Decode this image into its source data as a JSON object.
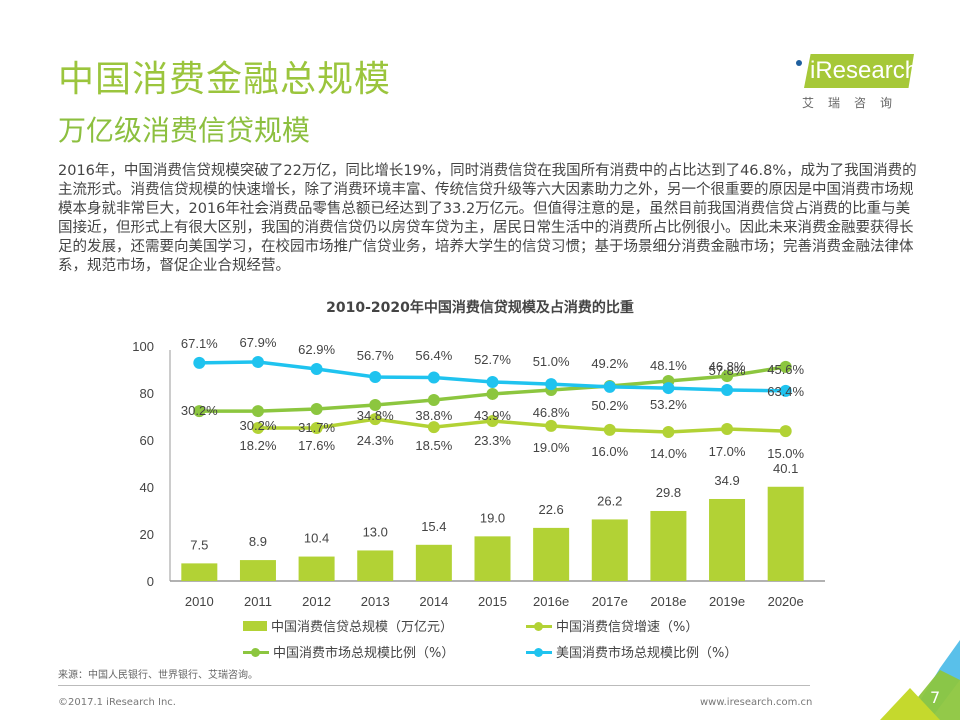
{
  "header": {
    "title": "中国消费金融总规模",
    "subtitle": "万亿级消费信贷规模"
  },
  "logo": {
    "brand": "iResearch",
    "brand_cn": "艾瑞咨询",
    "colors": {
      "box": "#a6c838",
      "dot": "#1f5f9e"
    }
  },
  "body_text": "2016年，中国消费信贷规模突破了22万亿，同比增长19%，同时消费信贷在我国所有消费中的占比达到了46.8%，成为了我国消费的主流形式。消费信贷规模的快速增长，除了消费环境丰富、传统信贷升级等六大因素助力之外，另一个很重要的原因是中国消费市场规模本身就非常巨大，2016年社会消费品零售总额已经达到了33.2万亿元。但值得注意的是，虽然目前我国消费信贷占消费的比重与美国接近，但形式上有很大区别，我国的消费信贷仍以房贷车贷为主，居民日常生活中的消费所占比例很小。因此未来消费金融要获得长足的发展，还需要向美国学习，在校园市场推广信贷业务，培养大学生的信贷习惯；基于场景细分消费金融市场；完善消费金融法律体系，规范市场，督促企业合规经营。",
  "chart_data": {
    "type": "bar",
    "title": "2010-2020年中国消费信贷规模及占消费的比重",
    "xlabel": "",
    "ylabel": "",
    "ylim": [
      0,
      100
    ],
    "yticks": [
      0,
      20,
      40,
      60,
      80,
      100
    ],
    "grid": false,
    "legend_position": "bottom",
    "categories": [
      "2010",
      "2011",
      "2012",
      "2013",
      "2014",
      "2015",
      "2016e",
      "2017e",
      "2018e",
      "2019e",
      "2020e"
    ],
    "series": [
      {
        "name": "中国消费信贷总规模（万亿元）",
        "type": "bar",
        "color": "#b2d235",
        "values": [
          7.5,
          8.9,
          10.4,
          13.0,
          15.4,
          19.0,
          22.6,
          26.2,
          29.8,
          34.9,
          40.1
        ],
        "labels": [
          "7.5",
          "8.9",
          "10.4",
          "13.0",
          "15.4",
          "19.0",
          "22.6",
          "26.2",
          "29.8",
          "34.9",
          "40.1"
        ]
      },
      {
        "name": "中国消费信贷增速（%）",
        "type": "line",
        "color": "#b2d235",
        "values": [
          null,
          18.2,
          17.6,
          24.3,
          18.5,
          23.3,
          19.0,
          16.0,
          14.0,
          17.0,
          15.0
        ],
        "plotted_on_axis": [
          null,
          65.1,
          65.1,
          68.9,
          65.5,
          68.1,
          66.0,
          64.3,
          63.4,
          64.7,
          63.8
        ],
        "labels": [
          "",
          "18.2%",
          "17.6%",
          "24.3%",
          "18.5%",
          "23.3%",
          "19.0%",
          "16.0%",
          "14.0%",
          "17.0%",
          "15.0%"
        ]
      },
      {
        "name": "中国消费市场总规模比例（%）",
        "type": "line",
        "color": "#8cc63f",
        "values": [
          30.2,
          30.2,
          31.7,
          34.8,
          38.8,
          43.9,
          46.8,
          50.2,
          53.2,
          57.8,
          63.4
        ],
        "plotted_on_axis": [
          72.3,
          72.3,
          73.2,
          74.9,
          77.0,
          79.6,
          81.3,
          83.0,
          85.1,
          87.2,
          91.1
        ],
        "labels": [
          "30.2%",
          "30.2%",
          "31.7%",
          "34.8%",
          "38.8%",
          "43.9%",
          "46.8%",
          "50.2%",
          "53.2%",
          "57.8%",
          "63.4%"
        ]
      },
      {
        "name": "美国消费市场总规模比例（%）",
        "type": "line",
        "color": "#1fc3ef",
        "values": [
          67.1,
          67.9,
          62.9,
          56.7,
          56.4,
          52.7,
          51.0,
          49.2,
          48.1,
          46.8,
          45.6
        ],
        "plotted_on_axis": [
          92.8,
          93.2,
          90.2,
          86.8,
          86.6,
          84.7,
          83.8,
          82.6,
          82.1,
          81.3,
          80.9
        ],
        "labels": [
          "67.1%",
          "67.9%",
          "62.9%",
          "56.7%",
          "56.4%",
          "52.7%",
          "51.0%",
          "49.2%",
          "48.1%",
          "46.8%",
          "45.6%"
        ]
      }
    ]
  },
  "legend": [
    {
      "label": "中国消费信贷总规模（万亿元）",
      "kind": "bar",
      "color": "#b2d235"
    },
    {
      "label": "中国消费信贷增速（%）",
      "kind": "line",
      "color": "#b2d235"
    },
    {
      "label": "中国消费市场总规模比例（%）",
      "kind": "line",
      "color": "#8cc63f"
    },
    {
      "label": "美国消费市场总规模比例（%）",
      "kind": "line",
      "color": "#1fc3ef"
    }
  ],
  "footer": {
    "source": "来源：中国人民银行、世界银行、艾瑞咨询。",
    "copyright": "©2017.1 iResearch Inc.",
    "website": "www.iresearch.com.cn",
    "page_number": "7"
  }
}
